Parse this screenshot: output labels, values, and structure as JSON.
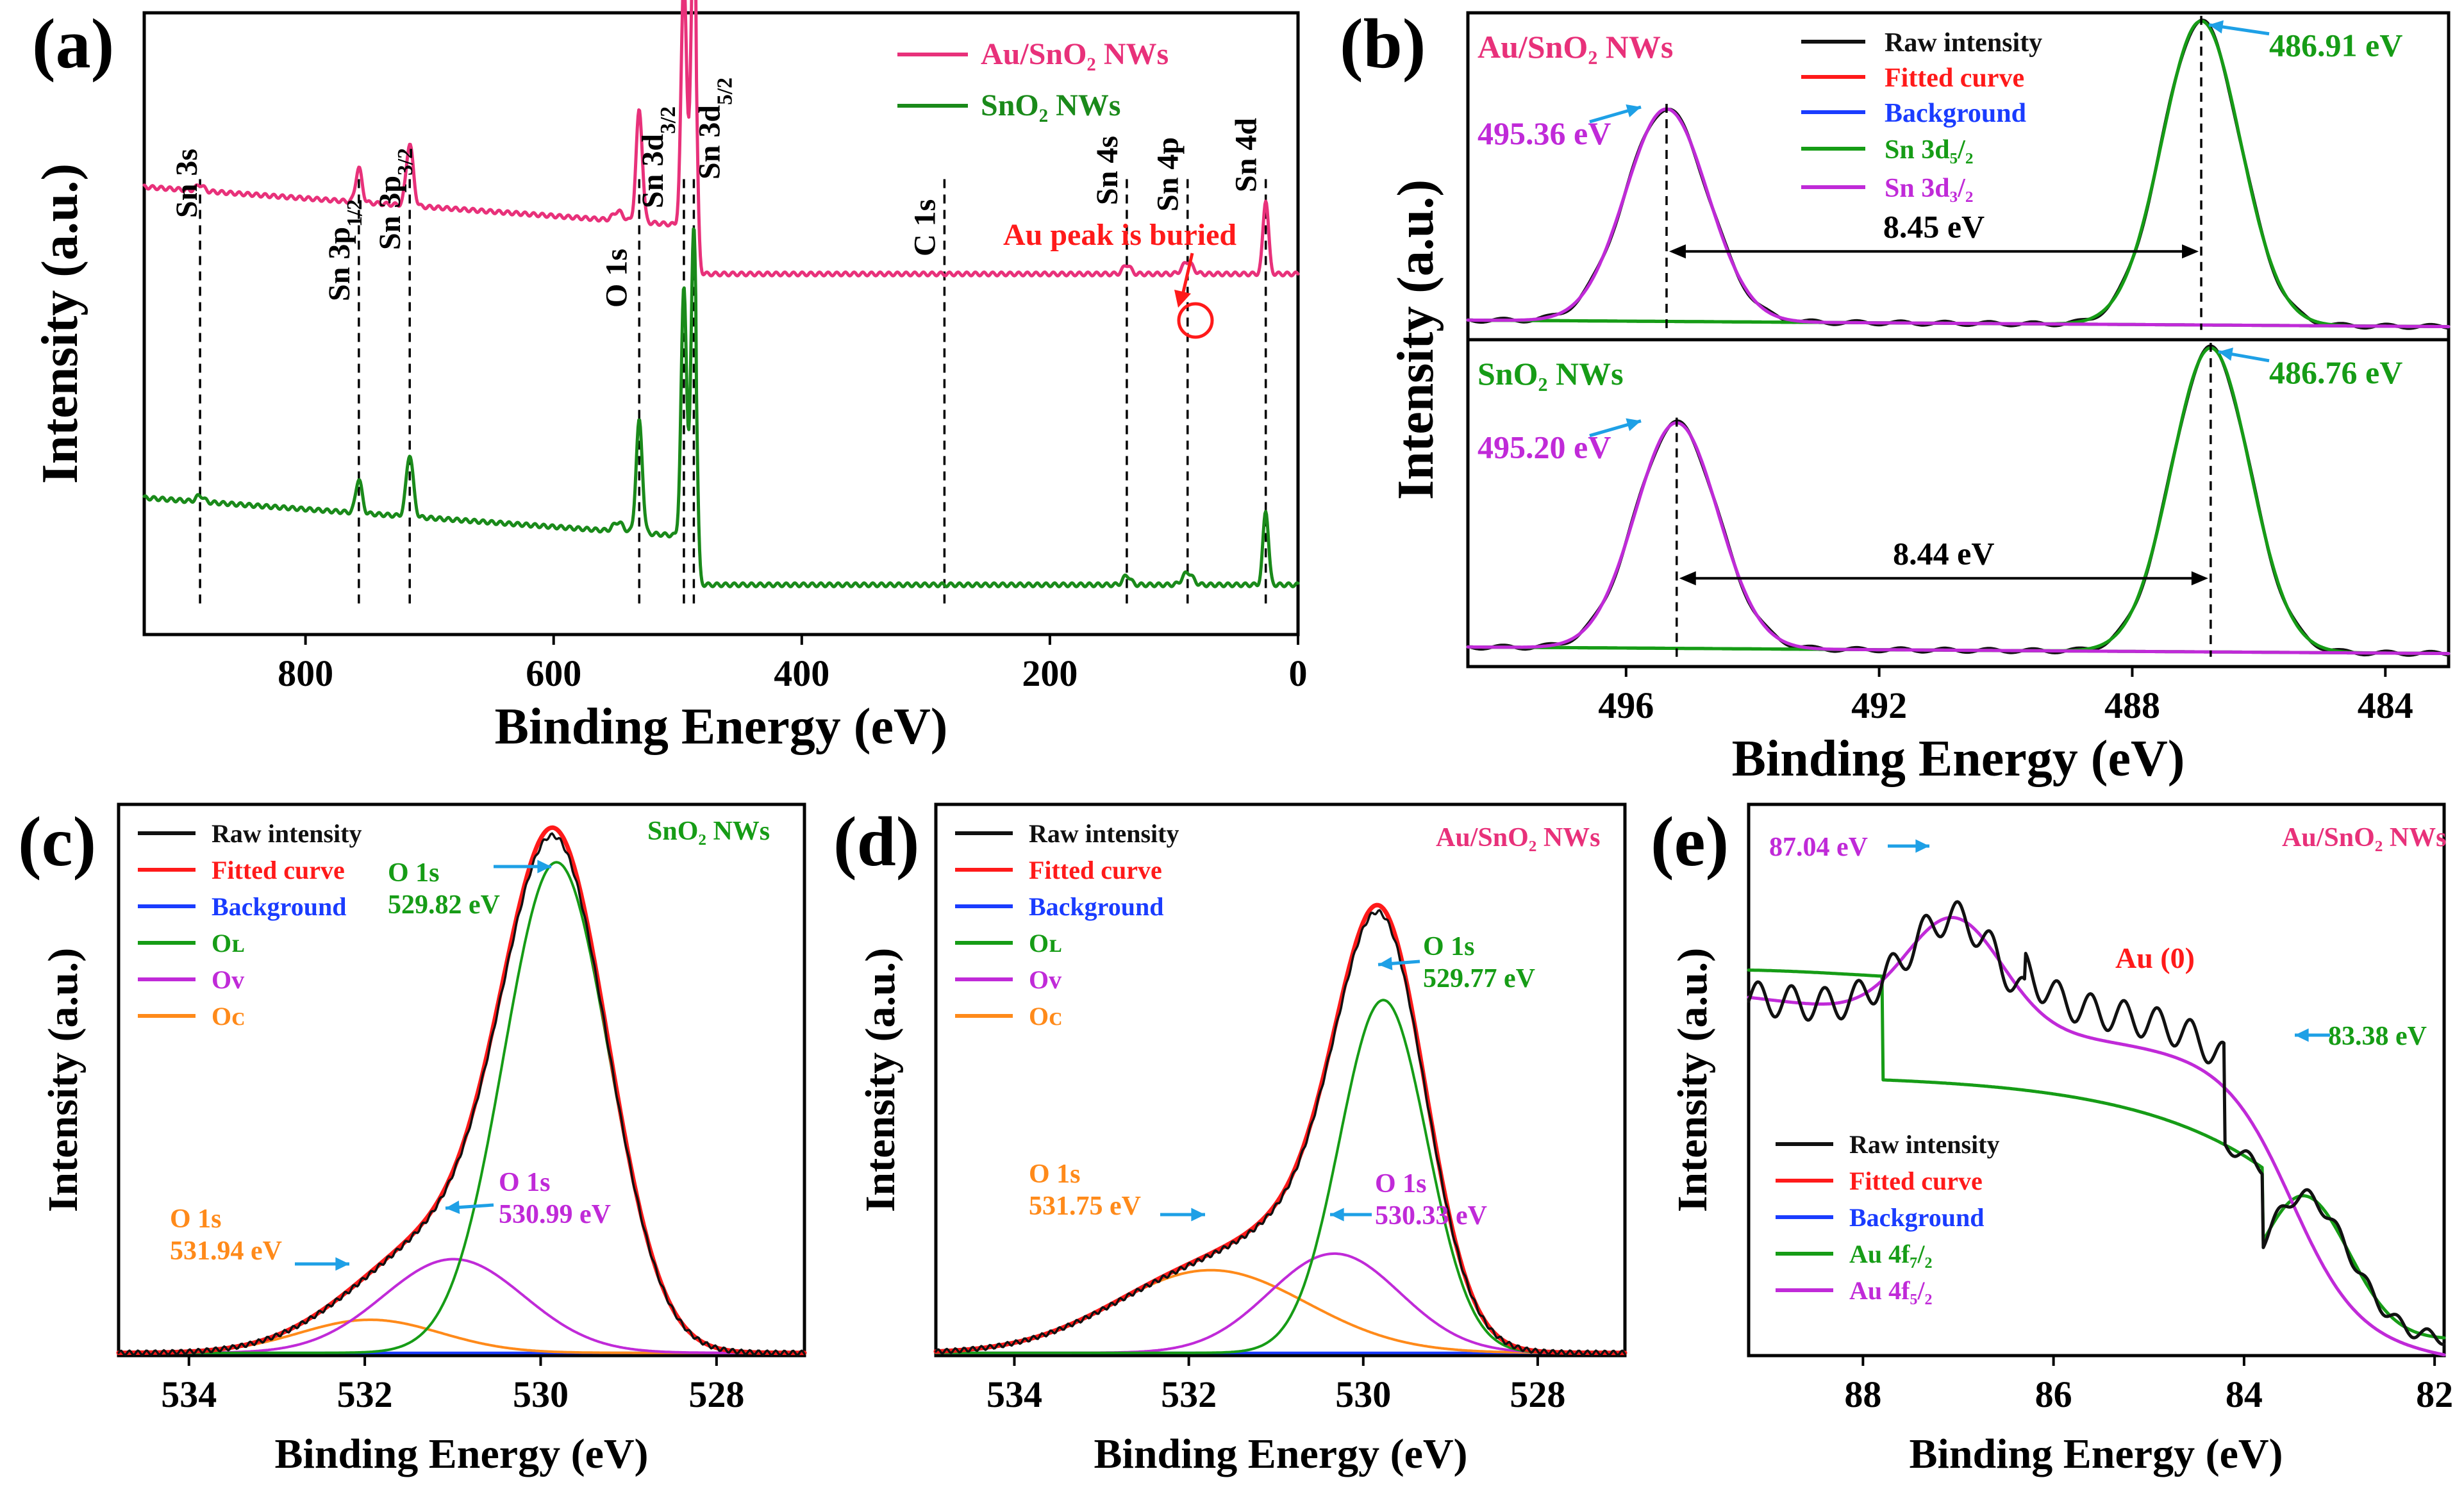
{
  "figure": {
    "colors": {
      "au_sample": "#e8317a",
      "sno2_sample": "#1a8a1a",
      "raw": "#111111",
      "fit": "#ff1a1a",
      "background": "#1a3cff",
      "green": "#169c16",
      "magenta": "#c02ad8",
      "orange": "#ff8a1a",
      "arrow": "#1ea0e6",
      "red_text": "#ff1a1a"
    }
  },
  "chart_data": [
    {
      "id": "a",
      "panel_label": "(a)",
      "type": "line",
      "title": "",
      "xlabel": "Binding Energy (eV)",
      "ylabel": "Intensity (a.u.)",
      "xlim": [
        930,
        0
      ],
      "xticks": [
        800,
        600,
        400,
        200,
        0
      ],
      "legend": {
        "position": "top-right",
        "entries": [
          "Au/SnO₂ NWs",
          "SnO₂ NWs"
        ]
      },
      "series": [
        {
          "name": "Au/SnO₂ NWs",
          "offset": 0.58,
          "baseline_high": 0.14,
          "baseline_low": 0.0
        },
        {
          "name": "SnO₂ NWs",
          "offset": 0.08,
          "baseline_high": 0.14,
          "baseline_low": 0.0
        }
      ],
      "peaks": [
        {
          "label": "Sn 3s",
          "sub": "",
          "x": 885,
          "h": 0.01,
          "w": 3
        },
        {
          "label": "Sn 3p",
          "sub": "1/2",
          "x": 757,
          "h": 0.055,
          "w": 2.5
        },
        {
          "label": "Sn 3p",
          "sub": "3/2",
          "x": 716,
          "h": 0.1,
          "w": 2.8
        },
        {
          "label": "O 1s",
          "sub": "",
          "x": 531,
          "h": 0.18,
          "w": 2.5
        },
        {
          "label": "Sn 3d",
          "sub": "3/2",
          "x": 495,
          "h": 0.4,
          "w": 2.2
        },
        {
          "label": "Sn 3d",
          "sub": "5/2",
          "x": 487,
          "h": 0.5,
          "w": 2.2
        },
        {
          "label": "C 1s",
          "sub": "",
          "x": 285,
          "h": 0.0,
          "w": 3
        },
        {
          "label": "Sn 4s",
          "sub": "",
          "x": 138,
          "h": 0.015,
          "w": 3
        },
        {
          "label": "Sn 4p",
          "sub": "",
          "x": 89,
          "h": 0.02,
          "w": 4
        },
        {
          "label": "Sn 4d",
          "sub": "",
          "x": 26,
          "h": 0.12,
          "w": 2.2
        }
      ],
      "annotation": "Au peak is buried"
    },
    {
      "id": "b",
      "panel_label": "(b)",
      "type": "line",
      "xlabel": "Binding Energy (eV)",
      "ylabel": "Intensity (a.u.)",
      "xlim": [
        498.5,
        483
      ],
      "xticks": [
        496,
        492,
        488,
        484
      ],
      "legend": {
        "position": "top-center",
        "entries": [
          "Raw intensity",
          "Fitted curve",
          "Background",
          "Sn 3d₅/₂",
          "Sn 3d₃/₂"
        ]
      },
      "subplots": [
        {
          "sample": "Au/SnO₂ NWs",
          "peak_32": 495.36,
          "peak_52": 486.91,
          "h32": 0.65,
          "h52": 0.93,
          "sep": "8.45 eV",
          "lbl32": "495.36 eV",
          "lbl52": "486.91 eV"
        },
        {
          "sample": "SnO₂ NWs",
          "peak_32": 495.2,
          "peak_52": 486.76,
          "h32": 0.69,
          "h52": 0.93,
          "sep": "8.44 eV",
          "lbl32": "495.20 eV",
          "lbl52": "486.76 eV"
        }
      ]
    },
    {
      "id": "c",
      "panel_label": "(c)",
      "type": "line",
      "sample": "SnO₂ NWs",
      "xlabel": "Binding Energy (eV)",
      "ylabel": "Intensity (a.u.)",
      "xlim": [
        534.8,
        527.0
      ],
      "xticks": [
        534,
        532,
        530,
        528
      ],
      "legend": {
        "position": "top-left",
        "entries": [
          "Raw intensity",
          "Fitted curve",
          "Background",
          "Oʟ",
          "Oᴠ",
          "Oᴄ"
        ]
      },
      "components": [
        {
          "name": "O L",
          "center": 529.82,
          "h": 0.89,
          "w": 0.6,
          "label": "O 1s",
          "value": "529.82 eV"
        },
        {
          "name": "O V",
          "center": 530.99,
          "h": 0.17,
          "w": 0.8,
          "label": "O 1s",
          "value": "530.99 eV"
        },
        {
          "name": "O C",
          "center": 531.94,
          "h": 0.06,
          "w": 0.8,
          "label": "O 1s",
          "value": "531.94 eV"
        }
      ]
    },
    {
      "id": "d",
      "panel_label": "(d)",
      "type": "line",
      "sample": "Au/SnO₂ NWs",
      "xlabel": "Binding Energy (eV)",
      "ylabel": "Intensity (a.u.)",
      "xlim": [
        534.9,
        527.0
      ],
      "xticks": [
        534,
        532,
        530,
        528
      ],
      "legend": {
        "position": "top-left",
        "entries": [
          "Raw intensity",
          "Fitted curve",
          "Background",
          "Oʟ",
          "Oᴠ",
          "Oᴄ"
        ]
      },
      "components": [
        {
          "name": "O L",
          "center": 529.77,
          "h": 0.64,
          "w": 0.5,
          "label": "O 1s",
          "value": "529.77 eV"
        },
        {
          "name": "O V",
          "center": 530.33,
          "h": 0.18,
          "w": 0.75,
          "label": "O 1s",
          "value": "530.33 eV"
        },
        {
          "name": "O C",
          "center": 531.75,
          "h": 0.15,
          "w": 1.1,
          "label": "O 1s",
          "value": "531.75 eV"
        }
      ]
    },
    {
      "id": "e",
      "panel_label": "(e)",
      "type": "line",
      "sample": "Au/SnO₂ NWs",
      "xlabel": "Binding Energy (eV)",
      "ylabel": "Intensity (a.u.)",
      "xlim": [
        89.2,
        81.9
      ],
      "xticks": [
        88,
        86,
        84,
        82
      ],
      "legend": {
        "position": "bottom-left",
        "entries": [
          "Raw intensity",
          "Fitted curve",
          "Background",
          "Au 4f₇/₂",
          "Au 4f₅/₂"
        ]
      },
      "note": "Au (0)",
      "peaks": [
        {
          "name": "Au 4f 5/2",
          "center": 87.04,
          "value": "87.04 eV"
        },
        {
          "name": "Au 4f 7/2",
          "center": 83.38,
          "value": "83.38 eV"
        }
      ]
    }
  ]
}
